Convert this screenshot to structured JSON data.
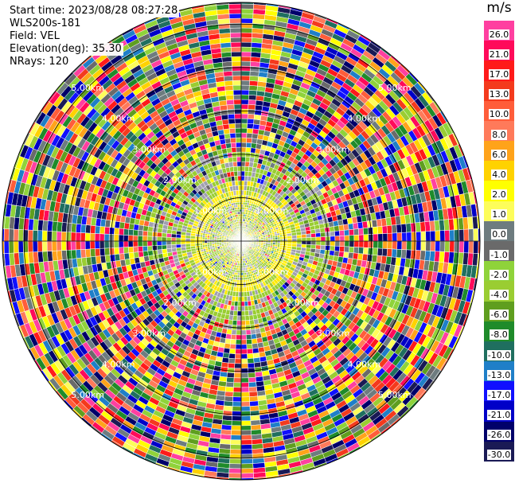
{
  "header": {
    "start_time": "Start time: 2023/08/28 08:27:28",
    "instrument": "WLS200s-181",
    "field": "Field: VEL",
    "elevation": "Elevation(deg): 35.30",
    "nrays": "NRays: 120"
  },
  "chart_data": {
    "type": "heatmap",
    "projection": "polar-ppi",
    "field": "VEL",
    "nrays": 120,
    "range_rings": [
      {
        "label": "1.00km"
      },
      {
        "label": "2.00km"
      },
      {
        "label": "3.00km"
      },
      {
        "label": "4.00km"
      },
      {
        "label": "5.00km"
      }
    ],
    "ring_label_angles_deg": [
      45,
      135,
      225,
      315
    ],
    "colorbar": {
      "unit": "m/s",
      "ticks": [
        "26.0",
        "21.0",
        "17.0",
        "13.0",
        "10.0",
        "8.0",
        "6.0",
        "4.0",
        "2.0",
        "1.0",
        "0.0",
        "-1.0",
        "-2.0",
        "-4.0",
        "-6.0",
        "-8.0",
        "-10.0",
        "-13.0",
        "-17.0",
        "-21.0",
        "-26.0",
        "-30.0"
      ],
      "colors": [
        "#ff3fa0",
        "#ff0a5a",
        "#ff1a1a",
        "#f43a1d",
        "#ff5d3a",
        "#ff7a5a",
        "#ffa31a",
        "#ffd200",
        "#ffff00",
        "#fdfd5a",
        "#6e7c7f",
        "#6a6a6a",
        "#8fd33a",
        "#9acd32",
        "#5f9e1f",
        "#1f8b2a",
        "#1f6f5f",
        "#1f7fc8",
        "#1010ff",
        "#0000c8",
        "#00006a",
        "#1a1a55"
      ]
    },
    "near_field": {
      "inner_yellow_ring_km": 1.0,
      "dominant_low_km": "yellow-green / grey"
    }
  }
}
